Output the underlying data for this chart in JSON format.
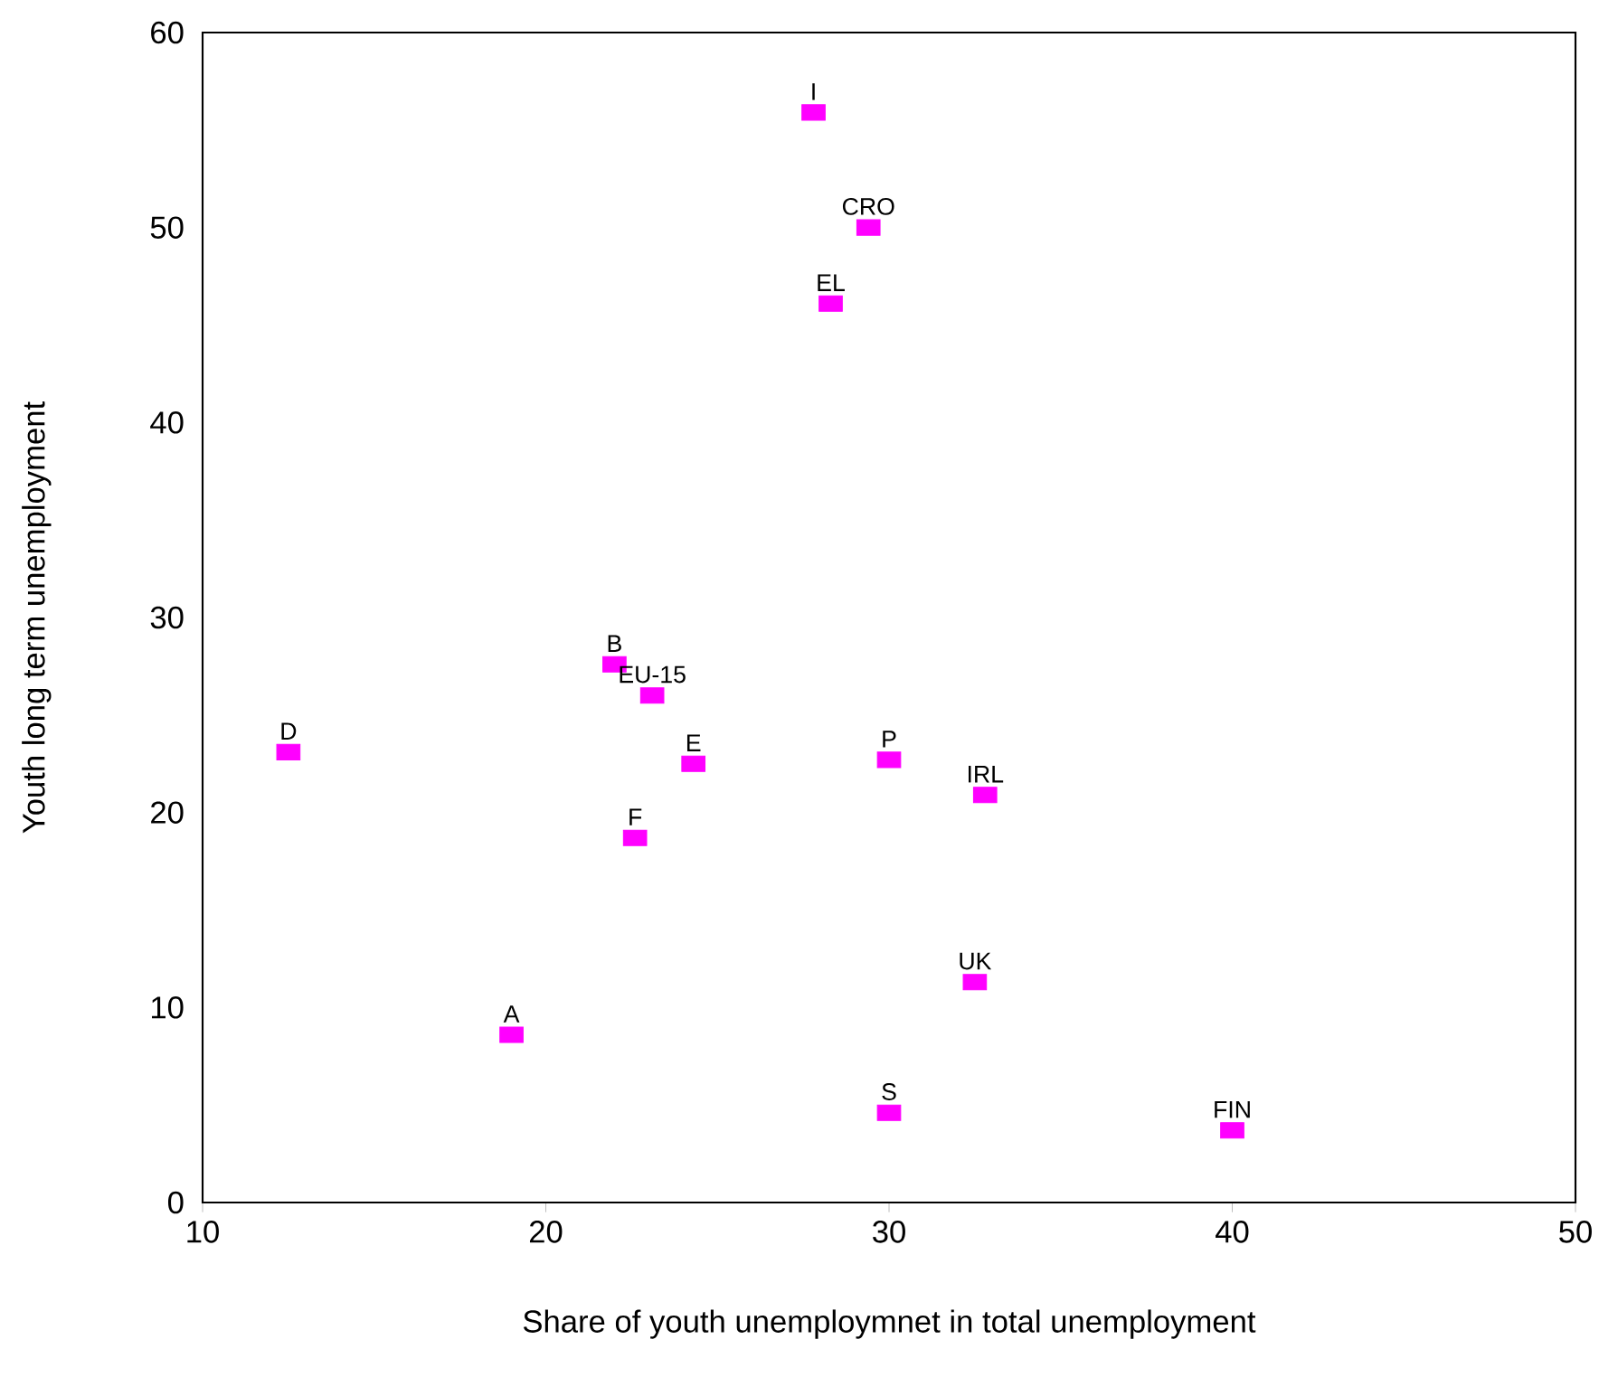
{
  "chart_data": {
    "type": "scatter",
    "xlabel": "Share of youth unemploymnet in total unemployment",
    "ylabel": "Youth long term unemployment",
    "x": [
      27.8,
      29.4,
      28.3,
      22.0,
      23.1,
      12.5,
      24.3,
      30.0,
      32.8,
      22.6,
      32.5,
      19.0,
      30.0,
      40.0
    ],
    "values": [
      55.9,
      50.0,
      46.1,
      27.6,
      26.0,
      23.1,
      22.5,
      22.7,
      20.9,
      18.7,
      11.3,
      8.6,
      4.6,
      3.7
    ],
    "color": "#ff00ff",
    "marker": "square",
    "grid": false,
    "xlim": [
      10,
      50
    ],
    "xticks": [
      10,
      20,
      30,
      40,
      50
    ],
    "ylim": [
      0,
      60
    ],
    "yticks": [
      0,
      10,
      20,
      30,
      40,
      50,
      60
    ],
    "annotations": [
      {
        "text": "I",
        "x": 27.8,
        "y": 55.9
      },
      {
        "text": "CRO",
        "x": 29.4,
        "y": 50.0
      },
      {
        "text": "EL",
        "x": 28.3,
        "y": 46.1
      },
      {
        "text": "B",
        "x": 22.0,
        "y": 27.6
      },
      {
        "text": "EU-15",
        "x": 23.1,
        "y": 26.0
      },
      {
        "text": "D",
        "x": 12.5,
        "y": 23.1
      },
      {
        "text": "E",
        "x": 24.3,
        "y": 22.5
      },
      {
        "text": "P",
        "x": 30.0,
        "y": 22.7
      },
      {
        "text": "IRL",
        "x": 32.8,
        "y": 20.9
      },
      {
        "text": "F",
        "x": 22.6,
        "y": 18.7
      },
      {
        "text": "UK",
        "x": 32.5,
        "y": 11.3
      },
      {
        "text": "A",
        "x": 19.0,
        "y": 8.6
      },
      {
        "text": "S",
        "x": 30.0,
        "y": 4.6
      },
      {
        "text": "FIN",
        "x": 40.0,
        "y": 3.7
      }
    ]
  }
}
